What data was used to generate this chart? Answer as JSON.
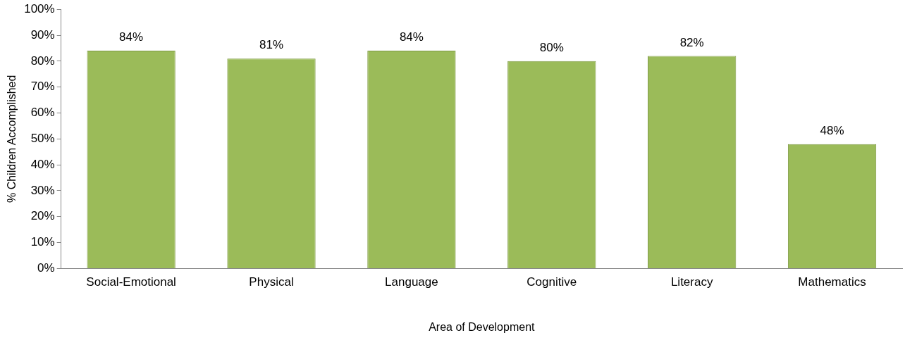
{
  "chart_data": {
    "type": "bar",
    "xlabel": "Area of Development",
    "ylabel": "% Children Accomplished",
    "categories": [
      "Social-Emotional",
      "Physical",
      "Language",
      "Cognitive",
      "Literacy",
      "Mathematics"
    ],
    "values": [
      84,
      81,
      84,
      80,
      82,
      48
    ],
    "color": "#9bbb59",
    "value_labels": [
      "84%",
      "81%",
      "84%",
      "80%",
      "82%",
      "48%"
    ],
    "ylim": [
      0,
      100
    ],
    "yticks": [
      {
        "value": 0,
        "label": "0%"
      },
      {
        "value": 10,
        "label": "10%"
      },
      {
        "value": 20,
        "label": "20%"
      },
      {
        "value": 30,
        "label": "30%"
      },
      {
        "value": 40,
        "label": "40%"
      },
      {
        "value": 50,
        "label": "50%"
      },
      {
        "value": 60,
        "label": "60%"
      },
      {
        "value": 70,
        "label": "70%"
      },
      {
        "value": 80,
        "label": "80%"
      },
      {
        "value": 90,
        "label": "90%"
      },
      {
        "value": 100,
        "label": "100%"
      }
    ],
    "grid": false,
    "legend": false
  }
}
